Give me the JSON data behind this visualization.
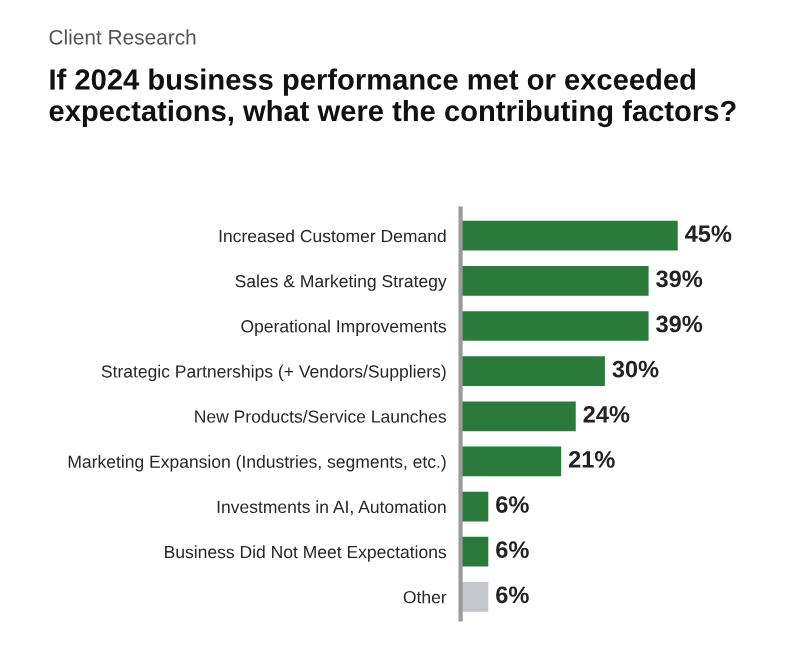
{
  "chart_data": {
    "type": "bar",
    "orientation": "horizontal",
    "subtitle": "Client Research",
    "title": "If 2024 business performance met or exceeded expectations, what were the contributing factors?",
    "categories": [
      "Increased Customer Demand",
      "Sales & Marketing Strategy",
      "Operational Improvements",
      "Strategic Partnerships (+ Vendors/Suppliers)",
      "New Products/Service Launches",
      "Marketing Expansion (Industries, segments, etc.)",
      "Investments in AI, Automation",
      "Business Did Not Meet Expectations",
      "Other"
    ],
    "values": [
      45,
      39,
      39,
      30,
      24,
      21,
      6,
      6,
      6
    ],
    "value_labels": [
      "45%",
      "39%",
      "39%",
      "30%",
      "24%",
      "21%",
      "6%",
      "6%",
      "6%"
    ],
    "colors": [
      "#2a7a3b",
      "#2a7a3b",
      "#2a7a3b",
      "#2a7a3b",
      "#2a7a3b",
      "#2a7a3b",
      "#2a7a3b",
      "#2a7a3b",
      "#c3c7cc"
    ],
    "grid": false,
    "legend": false
  }
}
